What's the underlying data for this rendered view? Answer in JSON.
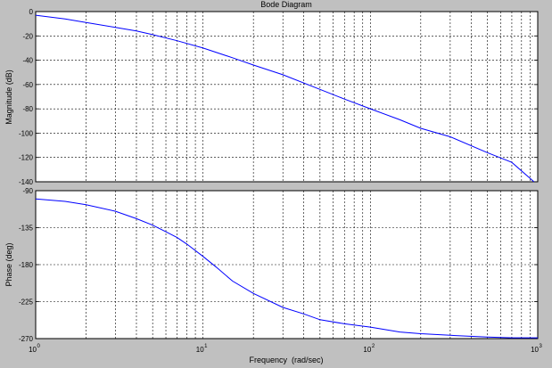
{
  "chart_data": [
    {
      "type": "line",
      "title": "Bode Diagram",
      "xlabel": "",
      "ylabel": "Magnitude (dB)",
      "xscale": "log",
      "xlim": [
        1,
        1000
      ],
      "ylim": [
        -140,
        0
      ],
      "yticks": [
        0,
        -20,
        -40,
        -60,
        -80,
        -100,
        -120,
        -140
      ],
      "grid": true,
      "colors": {
        "line": "#0000ff",
        "background": "#c0c0c0",
        "plot_area": "#ffffff"
      },
      "series": [
        {
          "x": [
            1,
            1.5,
            2,
            3,
            4,
            5,
            7,
            10,
            15,
            20,
            30,
            50,
            70,
            100,
            150,
            200,
            300,
            500,
            700,
            950
          ],
          "y": [
            -3,
            -6,
            -9,
            -13,
            -16,
            -19,
            -24,
            -30,
            -38,
            -44,
            -52,
            -64,
            -72,
            -80,
            -89,
            -96,
            -103,
            -116,
            -124,
            -140
          ]
        }
      ]
    },
    {
      "type": "line",
      "title": "",
      "xlabel": "Frequency  (rad/sec)",
      "ylabel": "Phase (deg)",
      "xscale": "log",
      "xlim": [
        1,
        1000
      ],
      "ylim": [
        -270,
        -90
      ],
      "yticks": [
        -90,
        -135,
        -180,
        -225,
        -270
      ],
      "xticks": [
        1,
        10,
        100,
        1000
      ],
      "xtick_labels": [
        {
          "base": "10",
          "exp": "0"
        },
        {
          "base": "10",
          "exp": "1"
        },
        {
          "base": "10",
          "exp": "2"
        },
        {
          "base": "10",
          "exp": "3"
        }
      ],
      "grid": true,
      "colors": {
        "line": "#0000ff"
      },
      "series": [
        {
          "x": [
            1,
            1.5,
            2,
            3,
            4,
            5,
            6,
            7,
            8,
            10,
            12,
            15,
            20,
            30,
            40,
            50,
            70,
            100,
            150,
            200,
            300,
            500,
            700,
            1000
          ],
          "y": [
            -100,
            -103,
            -107,
            -115,
            -124,
            -132,
            -140,
            -147,
            -155,
            -170,
            -183,
            -200,
            -215,
            -232,
            -240,
            -247,
            -252,
            -256,
            -262,
            -264,
            -266,
            -268,
            -269,
            -269
          ]
        }
      ]
    }
  ]
}
